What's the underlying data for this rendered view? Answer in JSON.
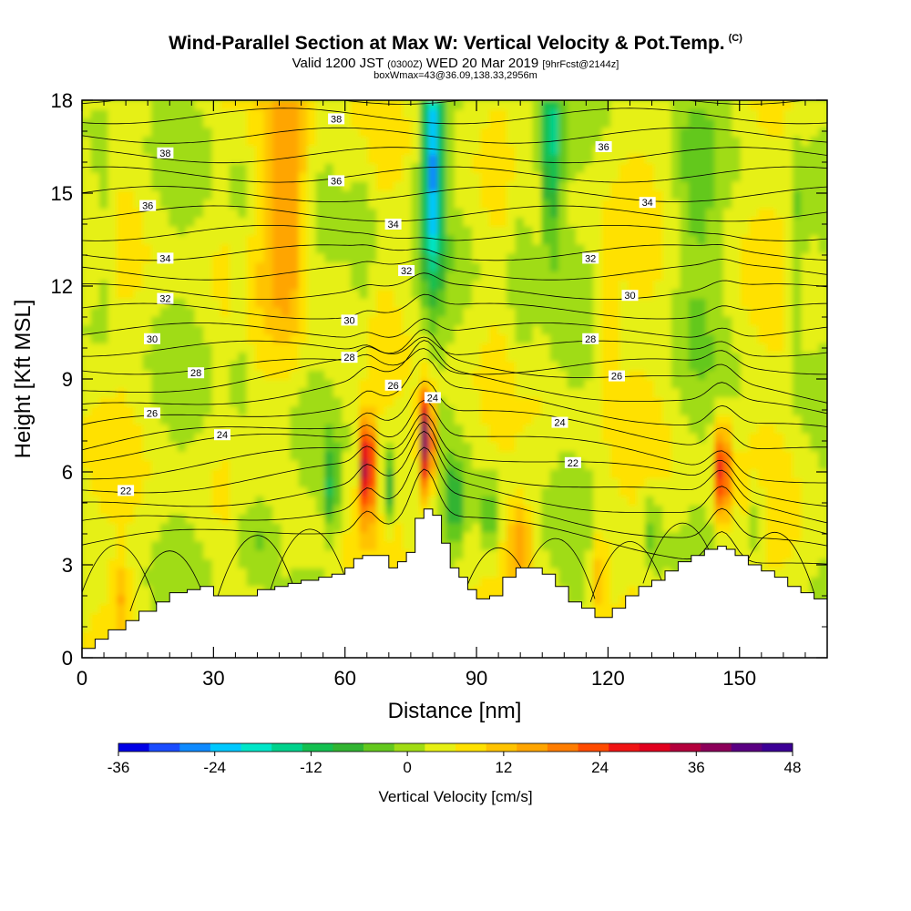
{
  "header": {
    "title": "Wind-Parallel Section at Max W: Vertical Velocity & Pot.Temp.",
    "title_mark": "(C)",
    "valid_prefix": "Valid 1200 JST",
    "valid_utc": "(0300Z)",
    "valid_date": "WED 20 Mar 2019",
    "forecast": "[9hrFcst@2144z]",
    "boxinfo": "boxWmax=43@36.09,138.33,2956m"
  },
  "chart_data": {
    "type": "heatmap",
    "title": "Wind-Parallel Section at Max W: Vertical Velocity & Pot.Temp.",
    "xlabel": "Distance [nm]",
    "ylabel": "Height [Kft MSL]",
    "xlim": [
      0,
      170
    ],
    "ylim": [
      0,
      18
    ],
    "x_ticks": [
      "0",
      "30",
      "60",
      "90",
      "120",
      "150"
    ],
    "x_tick_values": [
      0,
      30,
      60,
      90,
      120,
      150
    ],
    "y_ticks": [
      "0",
      "3",
      "6",
      "9",
      "12",
      "15",
      "18"
    ],
    "y_tick_values": [
      0,
      3,
      6,
      9,
      12,
      15,
      18
    ],
    "grid": false,
    "colorbar": {
      "title": "Vertical Velocity [cm/s]",
      "tick_labels": [
        "-36",
        "-24",
        "-12",
        "0",
        "12",
        "24",
        "36",
        "48"
      ],
      "tick_values": [
        -36,
        -24,
        -12,
        0,
        12,
        24,
        36,
        48
      ],
      "colors": [
        "#0000e6",
        "#1a4cff",
        "#0f8aff",
        "#00c8ff",
        "#00e6c8",
        "#00d28c",
        "#14bf50",
        "#32b432",
        "#64c81e",
        "#a0dc14",
        "#e6f014",
        "#ffe100",
        "#ffc300",
        "#ffa500",
        "#ff7d00",
        "#ff4b00",
        "#f01414",
        "#e1001e",
        "#b4003c",
        "#8c005a",
        "#5a0082",
        "#3c0096"
      ]
    },
    "terrain": {
      "x": [
        0,
        3,
        6,
        10,
        13,
        17,
        20,
        24,
        27,
        30,
        33,
        37,
        40,
        44,
        47,
        50,
        54,
        57,
        60,
        62,
        64,
        66,
        68,
        70,
        72,
        74,
        76,
        78,
        80,
        82,
        84,
        86,
        88,
        90,
        93,
        96,
        99,
        102,
        105,
        108,
        111,
        114,
        117,
        119,
        121,
        124,
        127,
        130,
        133,
        136,
        139,
        142,
        145,
        147,
        149,
        152,
        155,
        158,
        161,
        164,
        167,
        170
      ],
      "height_kft": [
        0.3,
        0.6,
        0.9,
        1.2,
        1.5,
        1.8,
        2.1,
        2.2,
        2.3,
        2.0,
        2.0,
        2.0,
        2.2,
        2.3,
        2.4,
        2.5,
        2.6,
        2.7,
        2.9,
        3.2,
        3.3,
        3.3,
        3.3,
        2.9,
        3.1,
        3.4,
        4.5,
        4.8,
        4.6,
        3.7,
        2.9,
        2.6,
        2.2,
        1.9,
        2.0,
        2.6,
        2.9,
        2.9,
        2.7,
        2.3,
        1.8,
        1.6,
        1.3,
        1.3,
        1.6,
        2.0,
        2.3,
        2.5,
        2.8,
        3.1,
        3.3,
        3.5,
        3.6,
        3.5,
        3.3,
        3.0,
        2.8,
        2.6,
        2.3,
        2.1,
        1.9,
        1.8
      ]
    },
    "theta_contour_labels": [
      {
        "value": "38",
        "x": 19,
        "y": 16.3
      },
      {
        "value": "38",
        "x": 58,
        "y": 17.4
      },
      {
        "value": "36",
        "x": 15,
        "y": 14.6
      },
      {
        "value": "36",
        "x": 58,
        "y": 15.4
      },
      {
        "value": "36",
        "x": 119,
        "y": 16.5
      },
      {
        "value": "34",
        "x": 19,
        "y": 12.9
      },
      {
        "value": "34",
        "x": 71,
        "y": 14.0
      },
      {
        "value": "34",
        "x": 129,
        "y": 14.7
      },
      {
        "value": "32",
        "x": 19,
        "y": 11.6
      },
      {
        "value": "32",
        "x": 74,
        "y": 12.5
      },
      {
        "value": "32",
        "x": 116,
        "y": 12.9
      },
      {
        "value": "30",
        "x": 16,
        "y": 10.3
      },
      {
        "value": "30",
        "x": 61,
        "y": 10.9
      },
      {
        "value": "30",
        "x": 125,
        "y": 11.7
      },
      {
        "value": "28",
        "x": 26,
        "y": 9.2
      },
      {
        "value": "28",
        "x": 61,
        "y": 9.7
      },
      {
        "value": "28",
        "x": 116,
        "y": 10.3
      },
      {
        "value": "26",
        "x": 16,
        "y": 7.9
      },
      {
        "value": "26",
        "x": 71,
        "y": 8.8
      },
      {
        "value": "26",
        "x": 122,
        "y": 9.1
      },
      {
        "value": "24",
        "x": 32,
        "y": 7.2
      },
      {
        "value": "24",
        "x": 80,
        "y": 8.4
      },
      {
        "value": "24",
        "x": 109,
        "y": 7.6
      },
      {
        "value": "22",
        "x": 10,
        "y": 5.4
      },
      {
        "value": "22",
        "x": 112,
        "y": 6.3
      }
    ],
    "w_features": [
      {
        "x": 65,
        "y": 6.3,
        "w": 41,
        "note": "updraft core"
      },
      {
        "x": 78.5,
        "y": 7.2,
        "w": 44,
        "note": "updraft core"
      },
      {
        "x": 146,
        "y": 6.2,
        "w": 28,
        "note": "updraft core"
      },
      {
        "x": 47,
        "y": 15.5,
        "w": 20,
        "note": "upper updraft"
      },
      {
        "x": 80,
        "y": 15.5,
        "w": -24,
        "note": "upper downdraft"
      },
      {
        "x": 107,
        "y": 16.5,
        "w": -16,
        "note": "upper downdraft"
      }
    ]
  }
}
